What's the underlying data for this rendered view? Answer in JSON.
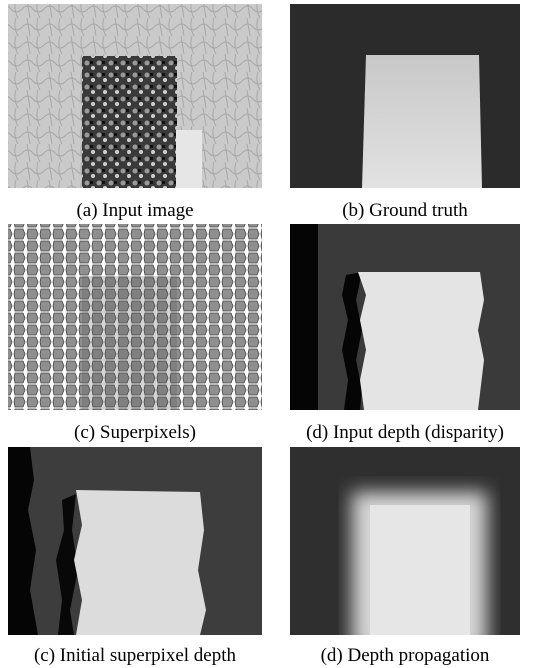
{
  "panels": [
    {
      "caption": "(a) Input image"
    },
    {
      "caption": "(b) Ground truth"
    },
    {
      "caption": "(c) Superpixels)"
    },
    {
      "caption": "(d) Input depth (disparity)"
    },
    {
      "caption": "(c) Initial superpixel depth"
    },
    {
      "caption": "(d) Depth propagation"
    }
  ]
}
